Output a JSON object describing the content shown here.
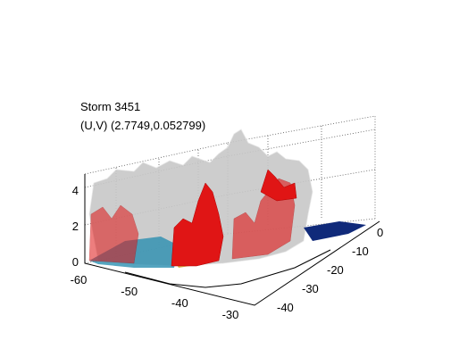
{
  "figure": {
    "title": [
      "Storm 3451",
      "(U,V) (2.7749,0.052799)"
    ],
    "z_ticks": [
      0,
      2,
      4
    ],
    "x_ticks": [
      -60,
      -50,
      -40,
      -30
    ],
    "y_ticks": [
      0,
      -10,
      -20,
      -30,
      -40
    ]
  }
}
